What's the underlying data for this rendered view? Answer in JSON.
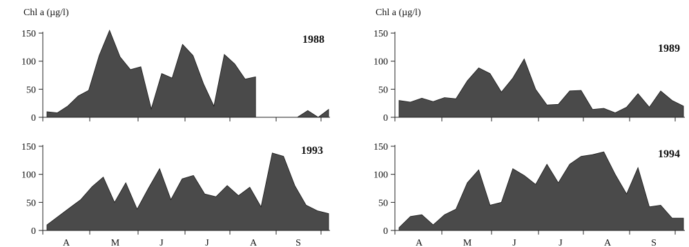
{
  "chart_data": [
    {
      "type": "area",
      "panel": "top-left",
      "ylabel": "Chl a (µg/l)",
      "year_label": "1988",
      "ylim": [
        0,
        150
      ],
      "yticks": [
        0,
        50,
        100,
        150
      ],
      "month_labels": [
        "A",
        "M",
        "J",
        "J",
        "A",
        "S"
      ],
      "xlim": [
        0,
        30
      ],
      "values": [
        10,
        8,
        20,
        38,
        48,
        110,
        155,
        108,
        85,
        90,
        15,
        78,
        70,
        130,
        110,
        60,
        20,
        112,
        95,
        68,
        72,
        null,
        null,
        0,
        0,
        12,
        0,
        14
      ],
      "x": [
        0,
        1,
        2,
        3,
        4,
        5,
        6,
        7,
        8,
        9,
        10,
        11,
        12,
        13,
        14,
        15,
        16,
        17,
        18,
        19,
        20,
        21,
        22,
        23,
        24,
        25,
        26,
        27
      ]
    },
    {
      "type": "area",
      "panel": "top-right",
      "ylabel": "Chl a (µg/l)",
      "year_label": "1989",
      "ylim": [
        0,
        150
      ],
      "yticks": [
        0,
        50,
        100,
        150
      ],
      "month_labels": [
        "A",
        "M",
        "J",
        "J",
        "A",
        "S"
      ],
      "xlim": [
        0,
        30
      ],
      "values": [
        30,
        27,
        34,
        28,
        35,
        33,
        65,
        88,
        78,
        45,
        70,
        104,
        50,
        22,
        23,
        47,
        48,
        14,
        16,
        8,
        18,
        42,
        18,
        47,
        30,
        20
      ],
      "x": [
        0,
        1,
        2,
        3,
        4,
        5,
        6,
        7,
        8,
        9,
        10,
        11,
        12,
        13,
        14,
        15,
        16,
        17,
        18,
        19,
        20,
        21,
        22,
        23,
        24,
        25
      ]
    },
    {
      "type": "area",
      "panel": "bottom-left",
      "ylabel": "",
      "year_label": "1993",
      "ylim": [
        0,
        150
      ],
      "yticks": [
        0,
        50,
        100,
        150
      ],
      "month_labels": [
        "A",
        "M",
        "J",
        "J",
        "A",
        "S"
      ],
      "xlim": [
        0,
        30
      ],
      "values": [
        10,
        25,
        40,
        55,
        78,
        95,
        50,
        85,
        38,
        75,
        110,
        55,
        92,
        98,
        65,
        60,
        80,
        62,
        77,
        42,
        138,
        132,
        80,
        45,
        35,
        30
      ],
      "x": [
        0,
        1,
        2,
        3,
        4,
        5,
        6,
        7,
        8,
        9,
        10,
        11,
        12,
        13,
        14,
        15,
        16,
        17,
        18,
        19,
        20,
        21,
        22,
        23,
        24,
        25
      ]
    },
    {
      "type": "area",
      "panel": "bottom-right",
      "ylabel": "",
      "year_label": "1994",
      "ylim": [
        0,
        150
      ],
      "yticks": [
        0,
        50,
        100,
        150
      ],
      "month_labels": [
        "A",
        "M",
        "J",
        "J",
        "A",
        "S"
      ],
      "xlim": [
        0,
        30
      ],
      "values": [
        5,
        25,
        28,
        10,
        28,
        38,
        85,
        108,
        45,
        50,
        110,
        98,
        82,
        118,
        85,
        118,
        132,
        135,
        140,
        100,
        65,
        112,
        42,
        45,
        22,
        22
      ],
      "x": [
        0,
        1,
        2,
        3,
        4,
        5,
        6,
        7,
        8,
        9,
        10,
        11,
        12,
        13,
        14,
        15,
        16,
        17,
        18,
        19,
        20,
        21,
        22,
        23,
        24,
        25
      ]
    }
  ]
}
